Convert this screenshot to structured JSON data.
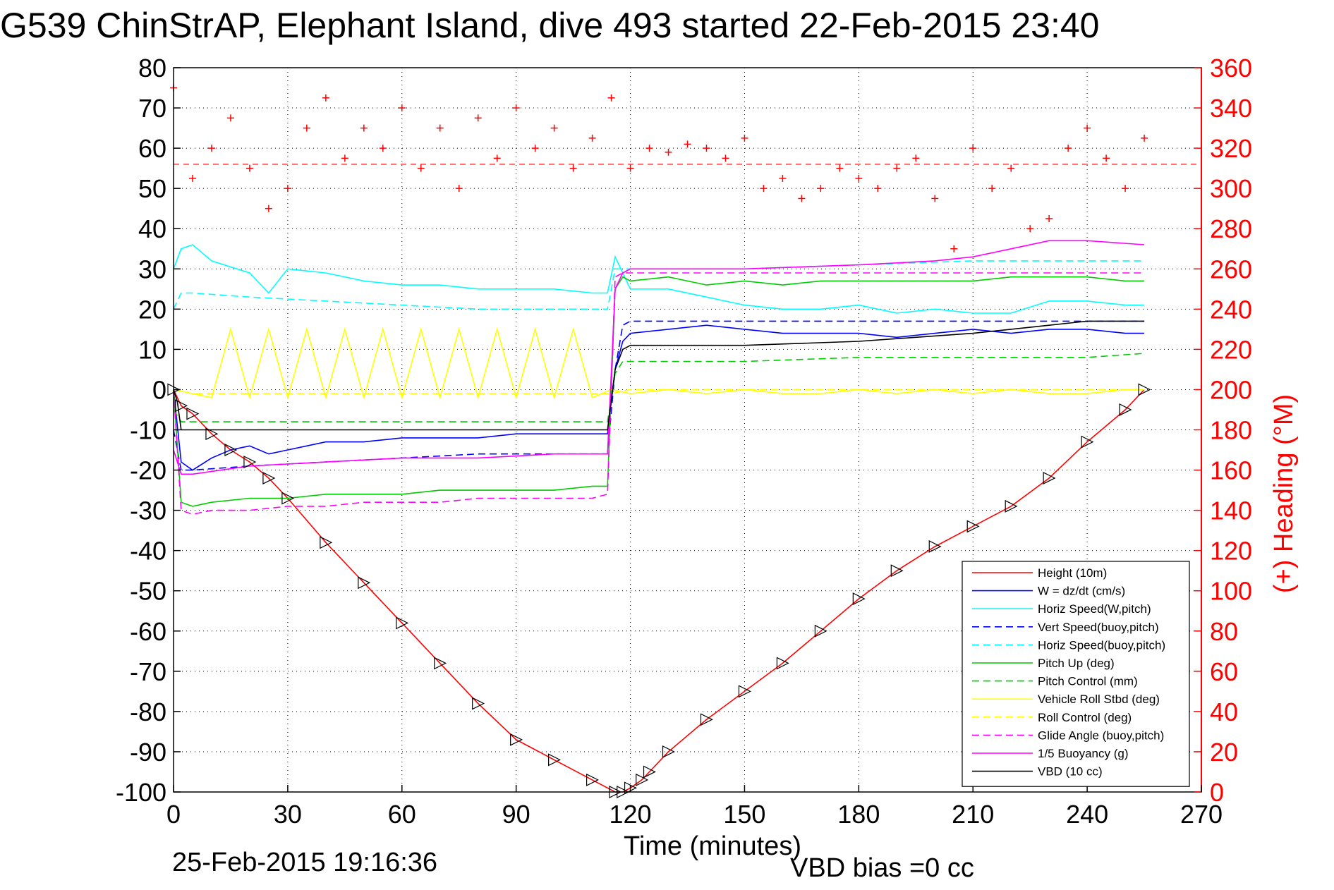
{
  "title": "G539 ChinStrAP, Elephant Island, dive 493 started 22-Feb-2015 23:40",
  "footer": {
    "timestamp": "25-Feb-2015 19:16:36",
    "vbd_bias": "VBD bias =0 cc"
  },
  "chart_data": {
    "type": "line",
    "xlabel": "Time (minutes)",
    "ylabel": "",
    "y2label": "(+) Heading (°M)",
    "xlim": [
      0,
      270
    ],
    "ylim": [
      -100,
      80
    ],
    "y2lim": [
      0,
      360
    ],
    "xticks": [
      "0",
      "30",
      "60",
      "90",
      "120",
      "150",
      "180",
      "210",
      "240",
      "270"
    ],
    "yticks": [
      "80",
      "70",
      "60",
      "50",
      "40",
      "30",
      "20",
      "10",
      "0",
      "-10",
      "-20",
      "-30",
      "-40",
      "-50",
      "-60",
      "-70",
      "-80",
      "-90",
      "-100"
    ],
    "y2ticks": [
      "360",
      "340",
      "320",
      "300",
      "280",
      "260",
      "240",
      "220",
      "200",
      "180",
      "160",
      "140",
      "120",
      "100",
      "80",
      "60",
      "40",
      "20",
      "0"
    ],
    "grid": true,
    "legend_position": "bottom-right",
    "colors": {
      "heading": "#ff0000",
      "height": "#ff0000",
      "w": "#0000ff",
      "horiz_speed": "#00ffff",
      "pitch": "#00cc00",
      "roll": "#ffff00",
      "glide": "#ff00ff",
      "vbd": "#000000"
    },
    "series": [
      {
        "name": "Height (10m)",
        "color": "#ff0000",
        "dash": false,
        "x": [
          0,
          2,
          5,
          10,
          15,
          20,
          25,
          30,
          40,
          50,
          60,
          70,
          80,
          90,
          100,
          110,
          116,
          118,
          120,
          123,
          125,
          130,
          140,
          150,
          160,
          170,
          180,
          190,
          200,
          210,
          220,
          230,
          240,
          250,
          255
        ],
        "y": [
          0,
          -4,
          -6,
          -11,
          -15,
          -18,
          -22,
          -27,
          -38,
          -48,
          -58,
          -68,
          -78,
          -87,
          -92,
          -97,
          -100,
          -100,
          -99,
          -97,
          -95,
          -90,
          -82,
          -75,
          -68,
          -60,
          -52,
          -45,
          -39,
          -34,
          -29,
          -22,
          -13,
          -5,
          0
        ]
      },
      {
        "name": "W = dz/dt (cm/s)",
        "color": "#0000ff",
        "dash": false,
        "x": [
          0,
          2,
          5,
          10,
          15,
          20,
          25,
          30,
          40,
          50,
          60,
          70,
          80,
          90,
          100,
          110,
          114,
          116,
          118,
          120,
          130,
          140,
          150,
          160,
          170,
          180,
          190,
          200,
          210,
          220,
          230,
          240,
          250,
          255
        ],
        "y": [
          0,
          -18,
          -20,
          -17,
          -15,
          -14,
          -16,
          -15,
          -13,
          -13,
          -12,
          -12,
          -12,
          -11,
          -11,
          -11,
          -11,
          5,
          12,
          14,
          15,
          16,
          15,
          14,
          14,
          14,
          13,
          14,
          15,
          14,
          15,
          15,
          14,
          14
        ]
      },
      {
        "name": "Horiz Speed(W,pitch)",
        "color": "#00ffff",
        "dash": false,
        "x": [
          0,
          2,
          5,
          10,
          20,
          25,
          30,
          40,
          50,
          60,
          70,
          80,
          90,
          100,
          110,
          114,
          116,
          118,
          120,
          130,
          140,
          150,
          160,
          170,
          180,
          190,
          200,
          210,
          220,
          230,
          240,
          250,
          255
        ],
        "y": [
          30,
          35,
          36,
          32,
          29,
          24,
          30,
          29,
          27,
          26,
          26,
          25,
          25,
          25,
          24,
          24,
          33,
          29,
          25,
          25,
          23,
          21,
          20,
          20,
          21,
          19,
          20,
          19,
          19,
          22,
          22,
          21,
          21
        ]
      },
      {
        "name": "Vert Speed(buoy,pitch)",
        "color": "#0000ff",
        "dash": true,
        "x": [
          0,
          2,
          5,
          20,
          40,
          60,
          80,
          100,
          114,
          116,
          118,
          120,
          150,
          180,
          210,
          240,
          255
        ],
        "y": [
          -10,
          -20,
          -20,
          -19,
          -18,
          -17,
          -16,
          -16,
          -16,
          5,
          16,
          17,
          17,
          17,
          17,
          17,
          17
        ]
      },
      {
        "name": "Horiz Speed(buoy,pitch)",
        "color": "#00ffff",
        "dash": true,
        "x": [
          0,
          2,
          5,
          20,
          40,
          60,
          80,
          100,
          114,
          116,
          118,
          120,
          150,
          180,
          210,
          240,
          255
        ],
        "y": [
          20,
          24,
          24,
          23,
          22,
          21,
          20,
          20,
          20,
          30,
          30,
          30,
          30,
          31,
          32,
          32,
          32
        ]
      },
      {
        "name": "Pitch Up (deg)",
        "color": "#00cc00",
        "dash": false,
        "x": [
          0,
          2,
          5,
          10,
          20,
          30,
          40,
          50,
          60,
          70,
          80,
          90,
          100,
          110,
          114,
          116,
          118,
          120,
          130,
          140,
          150,
          160,
          170,
          180,
          190,
          200,
          210,
          220,
          230,
          240,
          250,
          255
        ],
        "y": [
          0,
          -28,
          -29,
          -28,
          -27,
          -27,
          -26,
          -26,
          -26,
          -25,
          -25,
          -25,
          -25,
          -24,
          -24,
          25,
          28,
          27,
          28,
          26,
          27,
          26,
          27,
          27,
          27,
          27,
          27,
          28,
          28,
          28,
          27,
          27
        ]
      },
      {
        "name": "Pitch Control (mm)",
        "color": "#00cc00",
        "dash": true,
        "x": [
          0,
          2,
          5,
          20,
          40,
          60,
          80,
          100,
          114,
          116,
          118,
          120,
          150,
          180,
          210,
          240,
          255
        ],
        "y": [
          -5,
          -8,
          -8,
          -8,
          -8,
          -8,
          -8,
          -8,
          -8,
          4,
          7,
          7,
          7,
          8,
          8,
          8,
          9
        ]
      },
      {
        "name": "Vehicle Roll Stbd (deg)",
        "color": "#ffff00",
        "dash": false,
        "x": [
          0,
          5,
          10,
          15,
          20,
          25,
          30,
          35,
          40,
          45,
          50,
          55,
          60,
          65,
          70,
          75,
          80,
          85,
          90,
          95,
          100,
          105,
          110,
          115,
          120,
          130,
          140,
          150,
          160,
          170,
          180,
          190,
          200,
          210,
          220,
          230,
          240,
          250,
          255
        ],
        "y": [
          0,
          -1,
          -2,
          15,
          -2,
          15,
          -2,
          15,
          -2,
          15,
          -2,
          15,
          -2,
          15,
          -2,
          15,
          -2,
          15,
          -2,
          15,
          -2,
          15,
          -2,
          0,
          -1,
          0,
          -1,
          0,
          -1,
          -1,
          0,
          -1,
          0,
          -1,
          0,
          -1,
          -1,
          0,
          0
        ]
      },
      {
        "name": "Roll Control (deg)",
        "color": "#ffff00",
        "dash": true,
        "x": [
          0,
          5,
          20,
          40,
          60,
          80,
          100,
          115,
          120,
          150,
          180,
          210,
          240,
          255
        ],
        "y": [
          0,
          -1,
          -1,
          -1,
          -1,
          -1,
          -1,
          -1,
          0,
          0,
          0,
          0,
          0,
          0
        ]
      },
      {
        "name": "Glide Angle (buoy,pitch)",
        "color": "#ff00ff",
        "dash": true,
        "x": [
          0,
          2,
          5,
          10,
          20,
          30,
          40,
          50,
          60,
          70,
          80,
          90,
          100,
          110,
          114,
          116,
          118,
          120,
          150,
          180,
          210,
          240,
          255
        ],
        "y": [
          0,
          -30,
          -31,
          -30,
          -30,
          -29,
          -29,
          -28,
          -28,
          -28,
          -27,
          -27,
          -27,
          -27,
          -26,
          28,
          29,
          29,
          29,
          29,
          29,
          29,
          29
        ]
      },
      {
        "name": "1/5 Buoyancy (g)",
        "color": "#ff00ff",
        "dash": false,
        "x": [
          0,
          2,
          5,
          20,
          40,
          60,
          80,
          100,
          114,
          116,
          118,
          120,
          150,
          180,
          200,
          210,
          220,
          230,
          240,
          255
        ],
        "y": [
          -15,
          -21,
          -21,
          -19,
          -18,
          -17,
          -17,
          -16,
          -16,
          25,
          29,
          30,
          30,
          31,
          32,
          33,
          35,
          37,
          37,
          36
        ]
      },
      {
        "name": "VBD (10 cc)",
        "color": "#000000",
        "dash": false,
        "x": [
          0,
          1,
          2,
          5,
          20,
          40,
          60,
          80,
          100,
          114,
          116,
          118,
          120,
          150,
          180,
          210,
          220,
          230,
          240,
          255
        ],
        "y": [
          0,
          -3,
          -10,
          -10,
          -10,
          -10,
          -10,
          -10,
          -10,
          -10,
          5,
          10,
          11,
          11,
          12,
          14,
          15,
          16,
          17,
          17
        ]
      }
    ],
    "heading_series": {
      "name": "(+) Heading",
      "color": "#ff0000",
      "axis": "right",
      "marker": "+",
      "reference_line": 312,
      "x": [
        0,
        5,
        10,
        15,
        20,
        25,
        30,
        35,
        40,
        45,
        50,
        55,
        60,
        65,
        70,
        75,
        80,
        85,
        90,
        95,
        100,
        105,
        110,
        115,
        120,
        125,
        130,
        135,
        140,
        145,
        150,
        155,
        160,
        165,
        170,
        175,
        180,
        185,
        190,
        195,
        200,
        205,
        210,
        215,
        220,
        225,
        230,
        235,
        240,
        245,
        250,
        255
      ],
      "y": [
        350,
        305,
        320,
        335,
        310,
        290,
        300,
        330,
        345,
        315,
        330,
        320,
        340,
        310,
        330,
        300,
        335,
        315,
        340,
        320,
        330,
        310,
        325,
        345,
        310,
        320,
        318,
        322,
        320,
        315,
        325,
        300,
        305,
        295,
        300,
        310,
        305,
        300,
        310,
        315,
        295,
        270,
        320,
        300,
        310,
        280,
        285,
        320,
        330,
        315,
        300,
        325
      ]
    }
  }
}
